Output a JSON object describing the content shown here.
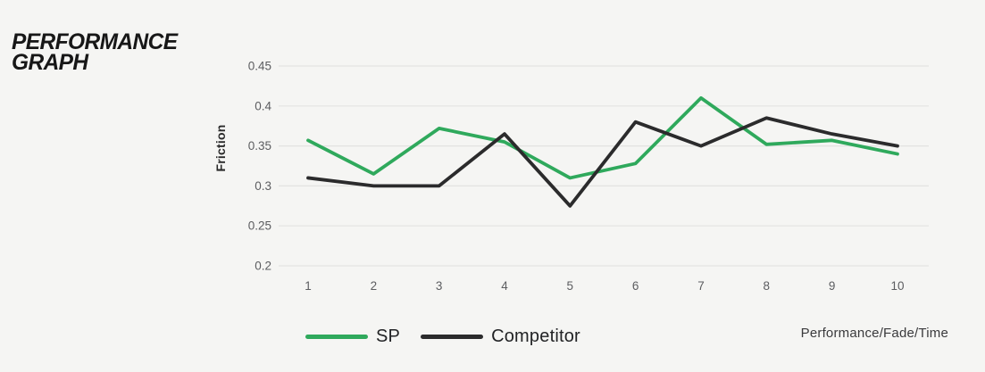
{
  "page": {
    "title": "PERFORMANCE\nGRAPH",
    "background_color": "#f5f5f3"
  },
  "chart_data": {
    "type": "line",
    "title": "PERFORMANCE GRAPH",
    "xlabel": "Performance/Fade/Time",
    "ylabel": "Friction",
    "x": [
      1,
      2,
      3,
      4,
      5,
      6,
      7,
      8,
      9,
      10
    ],
    "x_ticks": [
      "1",
      "2",
      "3",
      "4",
      "5",
      "6",
      "7",
      "8",
      "9",
      "10"
    ],
    "y_ticks": [
      "0.45",
      "0.4",
      "0.35",
      "0.3",
      "0.25",
      "0.2"
    ],
    "ylim": [
      0.2,
      0.45
    ],
    "grid": "horizontal",
    "grid_color": "#e3e3e1",
    "tick_color": "#5c5d60",
    "legend_position": "bottom",
    "series": [
      {
        "name": "SP",
        "color": "#2fa95c",
        "values": [
          0.357,
          0.315,
          0.372,
          0.355,
          0.31,
          0.328,
          0.41,
          0.352,
          0.357,
          0.34
        ]
      },
      {
        "name": "Competitor",
        "color": "#2b2b2c",
        "values": [
          0.31,
          0.3,
          0.3,
          0.365,
          0.275,
          0.38,
          0.35,
          0.385,
          0.365,
          0.35
        ]
      }
    ]
  }
}
